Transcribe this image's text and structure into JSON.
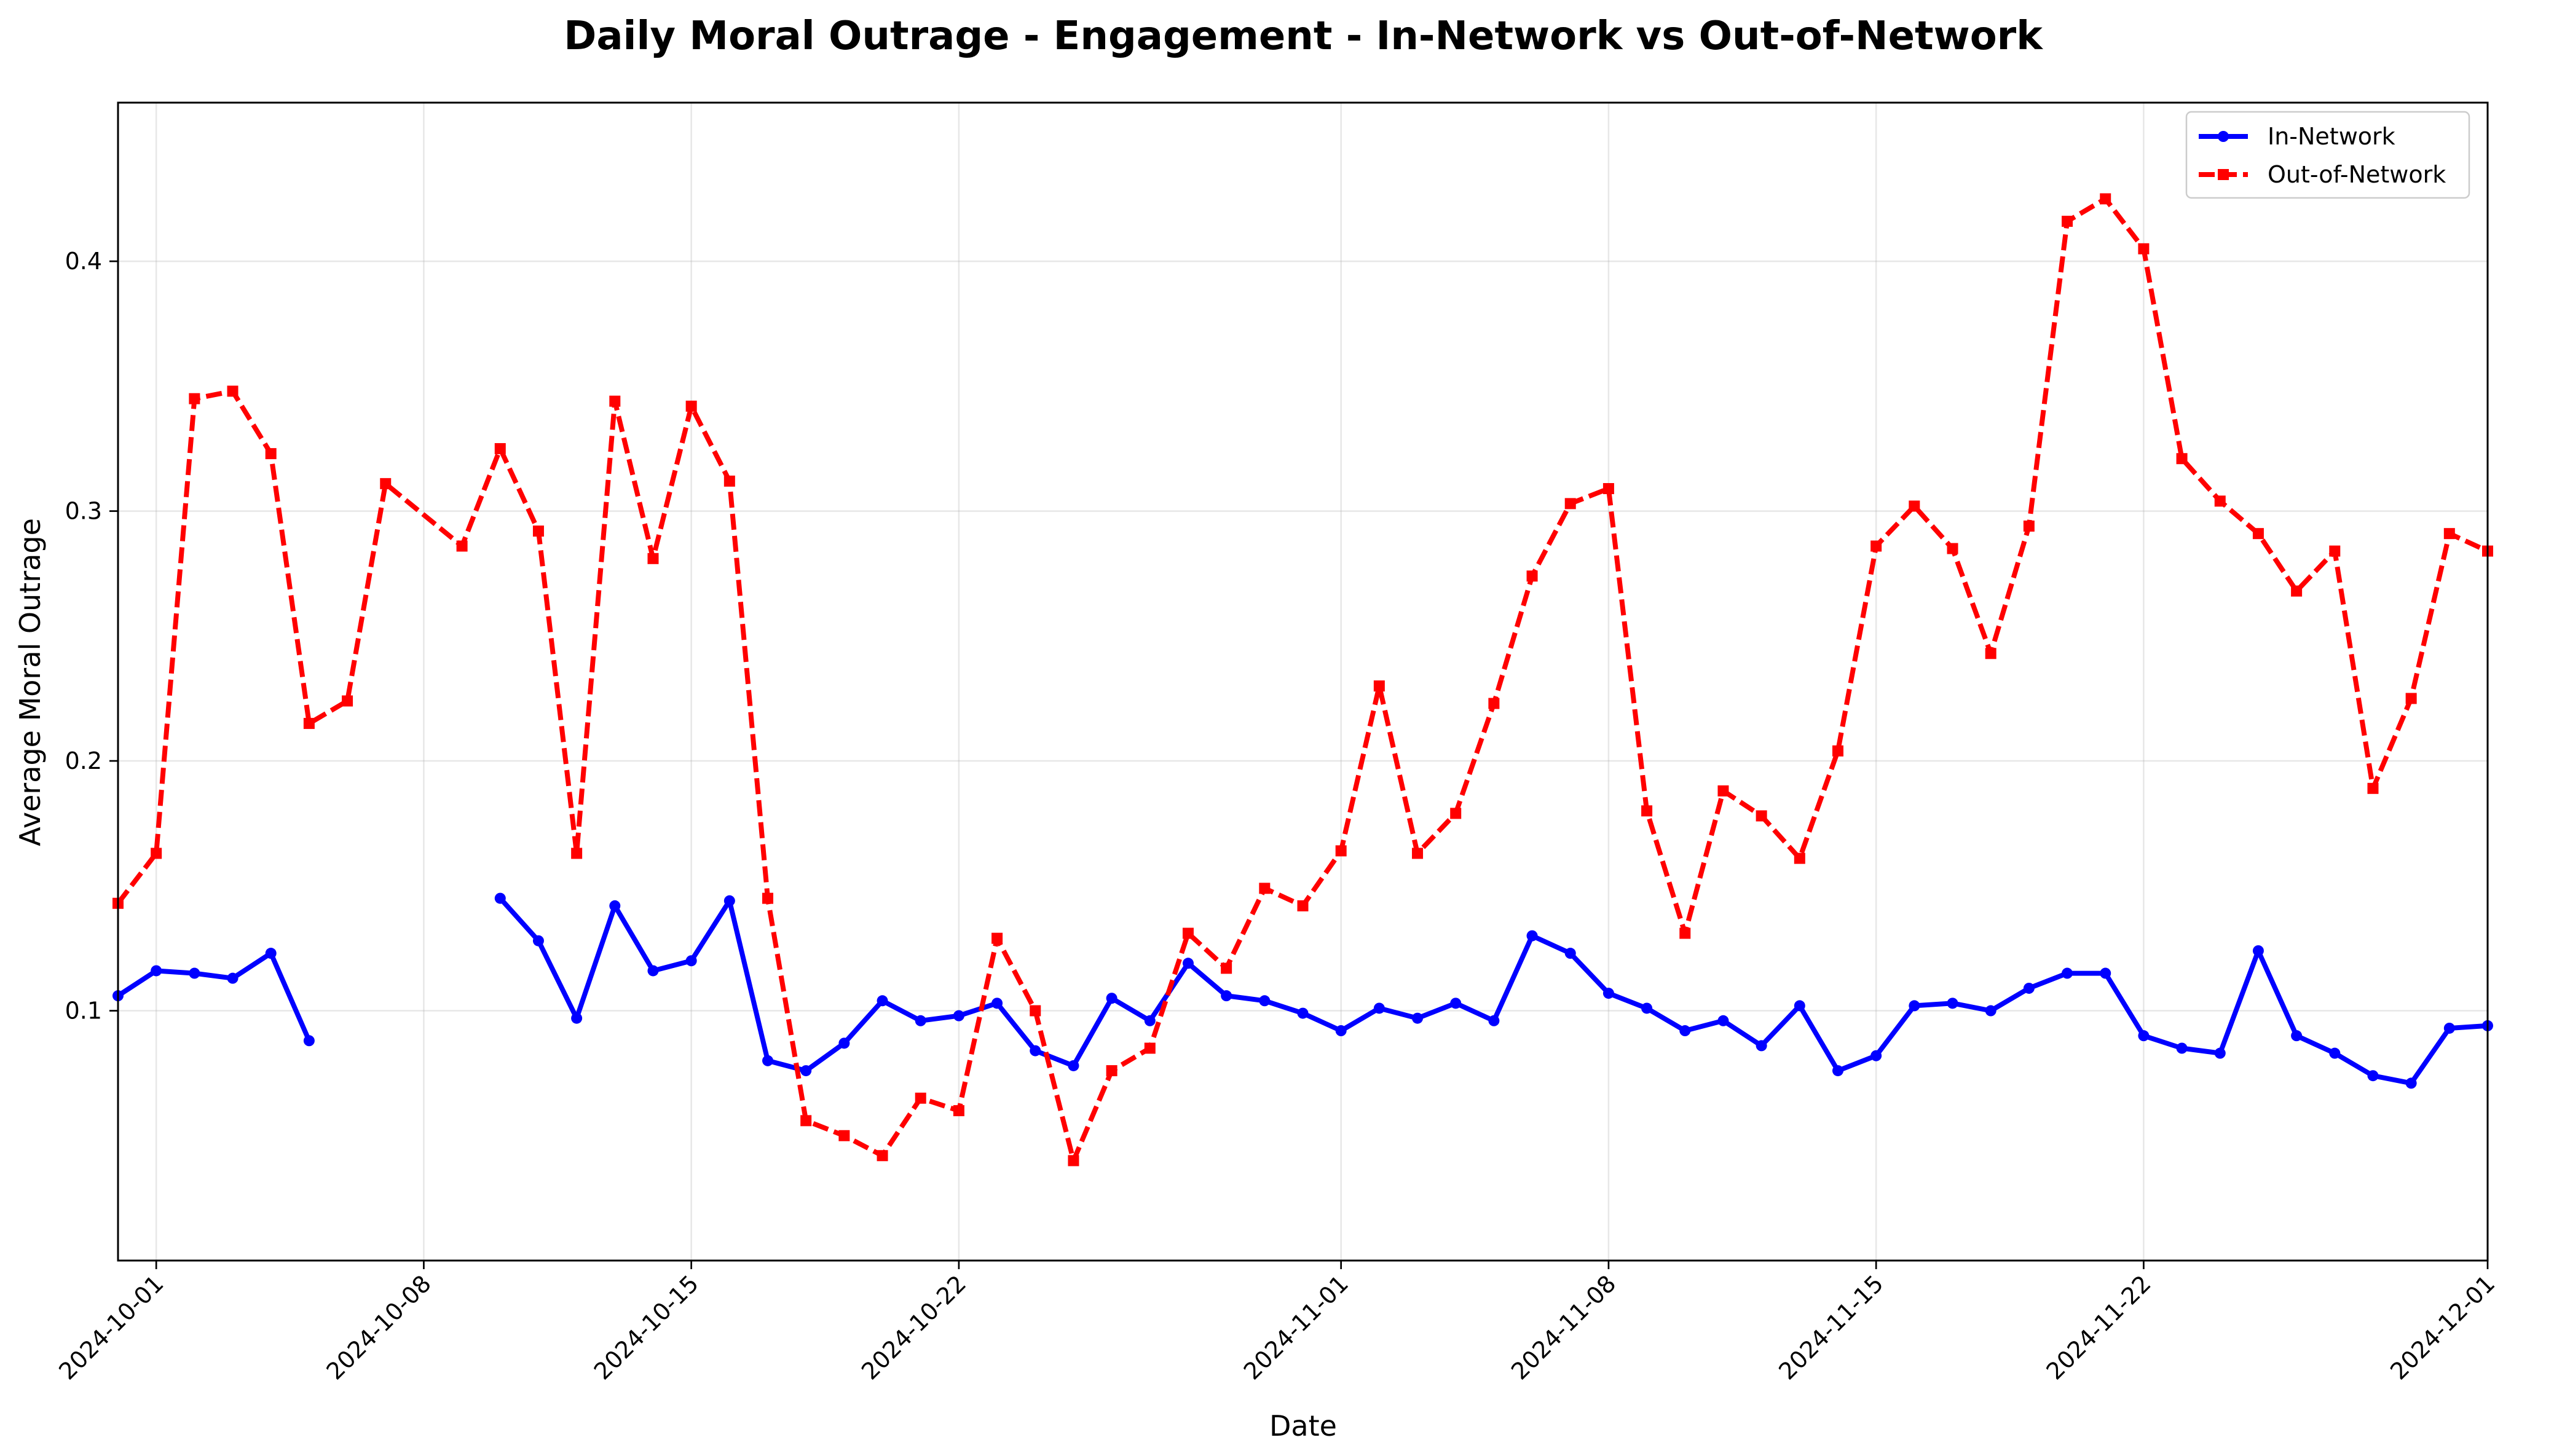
{
  "chart_data": {
    "type": "line",
    "title": "Daily Moral Outrage - Engagement - In-Network vs Out-of-Network",
    "xlabel": "Date",
    "ylabel": "Average Moral Outrage",
    "xlim": [
      "2024-09-30",
      "2024-12-01"
    ],
    "ylim": [
      0.0,
      0.4635
    ],
    "yticks": [
      0.1,
      0.2,
      0.3,
      0.4
    ],
    "ytick_labels": [
      "0.1",
      "0.2",
      "0.3",
      "0.4"
    ],
    "xticks": [
      "2024-10-01",
      "2024-10-08",
      "2024-10-15",
      "2024-10-22",
      "2024-11-01",
      "2024-11-08",
      "2024-11-15",
      "2024-11-22",
      "2024-12-01"
    ],
    "xtick_labels": [
      "2024-10-01",
      "2024-10-08",
      "2024-10-15",
      "2024-10-22",
      "2024-11-01",
      "2024-11-08",
      "2024-11-15",
      "2024-11-22",
      "2024-12-01"
    ],
    "grid": true,
    "legend_position": "top-right",
    "series": [
      {
        "name": "In-Network",
        "color": "#0000ff",
        "line_style": "solid",
        "marker": "circle",
        "points": [
          [
            "2024-09-30",
            0.106
          ],
          [
            "2024-10-01",
            0.116
          ],
          [
            "2024-10-02",
            0.115
          ],
          [
            "2024-10-03",
            0.113
          ],
          [
            "2024-10-04",
            0.123
          ],
          [
            "2024-10-05",
            0.088
          ],
          [
            "2024-10-06",
            null
          ],
          [
            "2024-10-07",
            null
          ],
          [
            "2024-10-08",
            null
          ],
          [
            "2024-10-09",
            null
          ],
          [
            "2024-10-10",
            0.145
          ],
          [
            "2024-10-11",
            0.128
          ],
          [
            "2024-10-12",
            0.097
          ],
          [
            "2024-10-13",
            0.142
          ],
          [
            "2024-10-14",
            0.116
          ],
          [
            "2024-10-15",
            0.12
          ],
          [
            "2024-10-16",
            0.144
          ],
          [
            "2024-10-17",
            0.08
          ],
          [
            "2024-10-18",
            0.076
          ],
          [
            "2024-10-19",
            0.087
          ],
          [
            "2024-10-20",
            0.104
          ],
          [
            "2024-10-21",
            0.096
          ],
          [
            "2024-10-22",
            0.098
          ],
          [
            "2024-10-23",
            0.103
          ],
          [
            "2024-10-24",
            0.084
          ],
          [
            "2024-10-25",
            0.078
          ],
          [
            "2024-10-26",
            0.105
          ],
          [
            "2024-10-27",
            0.096
          ],
          [
            "2024-10-28",
            0.119
          ],
          [
            "2024-10-29",
            0.106
          ],
          [
            "2024-10-30",
            0.104
          ],
          [
            "2024-10-31",
            0.099
          ],
          [
            "2024-11-01",
            0.092
          ],
          [
            "2024-11-02",
            0.101
          ],
          [
            "2024-11-03",
            0.097
          ],
          [
            "2024-11-04",
            0.103
          ],
          [
            "2024-11-05",
            0.096
          ],
          [
            "2024-11-06",
            0.13
          ],
          [
            "2024-11-07",
            0.123
          ],
          [
            "2024-11-08",
            0.107
          ],
          [
            "2024-11-09",
            0.101
          ],
          [
            "2024-11-10",
            0.092
          ],
          [
            "2024-11-11",
            0.096
          ],
          [
            "2024-11-12",
            0.086
          ],
          [
            "2024-11-13",
            0.102
          ],
          [
            "2024-11-14",
            0.076
          ],
          [
            "2024-11-15",
            0.082
          ],
          [
            "2024-11-16",
            0.102
          ],
          [
            "2024-11-17",
            0.103
          ],
          [
            "2024-11-18",
            0.1
          ],
          [
            "2024-11-19",
            0.109
          ],
          [
            "2024-11-20",
            0.115
          ],
          [
            "2024-11-21",
            0.115
          ],
          [
            "2024-11-22",
            0.09
          ],
          [
            "2024-11-23",
            0.085
          ],
          [
            "2024-11-24",
            0.083
          ],
          [
            "2024-11-25",
            0.124
          ],
          [
            "2024-11-26",
            0.09
          ],
          [
            "2024-11-27",
            0.083
          ],
          [
            "2024-11-28",
            0.074
          ],
          [
            "2024-11-29",
            0.071
          ],
          [
            "2024-11-30",
            0.093
          ],
          [
            "2024-12-01",
            0.094
          ]
        ]
      },
      {
        "name": "Out-of-Network",
        "color": "#ff0000",
        "line_style": "dashed",
        "marker": "square",
        "points": [
          [
            "2024-09-30",
            0.143
          ],
          [
            "2024-10-01",
            0.163
          ],
          [
            "2024-10-02",
            0.345
          ],
          [
            "2024-10-03",
            0.348
          ],
          [
            "2024-10-04",
            0.323
          ],
          [
            "2024-10-05",
            0.215
          ],
          [
            "2024-10-06",
            0.224
          ],
          [
            "2024-10-07",
            0.311
          ],
          [
            "2024-10-09",
            0.286
          ],
          [
            "2024-10-10",
            0.325
          ],
          [
            "2024-10-11",
            0.292
          ],
          [
            "2024-10-12",
            0.163
          ],
          [
            "2024-10-13",
            0.344
          ],
          [
            "2024-10-14",
            0.281
          ],
          [
            "2024-10-15",
            0.342
          ],
          [
            "2024-10-16",
            0.312
          ],
          [
            "2024-10-17",
            0.145
          ],
          [
            "2024-10-18",
            0.056
          ],
          [
            "2024-10-19",
            0.05
          ],
          [
            "2024-10-20",
            0.042
          ],
          [
            "2024-10-21",
            0.065
          ],
          [
            "2024-10-22",
            0.06
          ],
          [
            "2024-10-23",
            0.129
          ],
          [
            "2024-10-24",
            0.1
          ],
          [
            "2024-10-25",
            0.04
          ],
          [
            "2024-10-26",
            0.076
          ],
          [
            "2024-10-27",
            0.085
          ],
          [
            "2024-10-28",
            0.131
          ],
          [
            "2024-10-29",
            0.117
          ],
          [
            "2024-10-30",
            0.149
          ],
          [
            "2024-10-31",
            0.142
          ],
          [
            "2024-11-01",
            0.164
          ],
          [
            "2024-11-02",
            0.23
          ],
          [
            "2024-11-03",
            0.163
          ],
          [
            "2024-11-04",
            0.179
          ],
          [
            "2024-11-05",
            0.223
          ],
          [
            "2024-11-06",
            0.274
          ],
          [
            "2024-11-07",
            0.303
          ],
          [
            "2024-11-08",
            0.309
          ],
          [
            "2024-11-09",
            0.18
          ],
          [
            "2024-11-10",
            0.131
          ],
          [
            "2024-11-11",
            0.188
          ],
          [
            "2024-11-12",
            0.178
          ],
          [
            "2024-11-13",
            0.161
          ],
          [
            "2024-11-14",
            0.204
          ],
          [
            "2024-11-15",
            0.286
          ],
          [
            "2024-11-16",
            0.302
          ],
          [
            "2024-11-17",
            0.285
          ],
          [
            "2024-11-18",
            0.243
          ],
          [
            "2024-11-19",
            0.294
          ],
          [
            "2024-11-20",
            0.416
          ],
          [
            "2024-11-21",
            0.425
          ],
          [
            "2024-11-22",
            0.405
          ],
          [
            "2024-11-23",
            0.321
          ],
          [
            "2024-11-24",
            0.304
          ],
          [
            "2024-11-25",
            0.291
          ],
          [
            "2024-11-26",
            0.268
          ],
          [
            "2024-11-27",
            0.284
          ],
          [
            "2024-11-28",
            0.189
          ],
          [
            "2024-11-29",
            0.225
          ],
          [
            "2024-11-30",
            0.291
          ],
          [
            "2024-12-01",
            0.284
          ]
        ]
      }
    ]
  }
}
